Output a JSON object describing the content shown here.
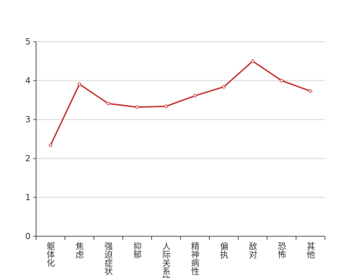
{
  "chart_data": {
    "type": "line",
    "categories": [
      "躯体化",
      "焦虑",
      "强迫症状",
      "抑郁",
      "人际关系敏感",
      "精神病性",
      "偏执",
      "敌对",
      "恐怖",
      "其他"
    ],
    "values": [
      2.34,
      3.91,
      3.41,
      3.32,
      3.34,
      3.61,
      3.84,
      4.5,
      4.0,
      3.73
    ],
    "color": "#c23531",
    "ylim": [
      0,
      5
    ],
    "yticks": [
      0,
      1,
      2,
      3,
      4,
      5
    ],
    "grid": true
  }
}
